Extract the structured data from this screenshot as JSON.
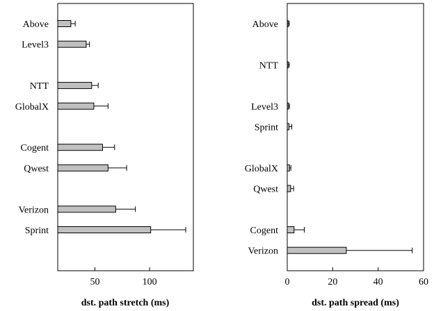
{
  "chart_data": [
    {
      "type": "bar",
      "orientation": "horizontal",
      "categories": [
        "Above",
        "Level3",
        "NTT",
        "GlobalX",
        "Cogent",
        "Qwest",
        "Verizon",
        "Sprint"
      ],
      "category_slots": [
        0,
        1,
        3,
        4,
        6,
        7,
        9,
        10
      ],
      "values": [
        28,
        42,
        47,
        49,
        57,
        62,
        69,
        101
      ],
      "error_upper": [
        32,
        45,
        53,
        62,
        68,
        79,
        87,
        133
      ],
      "title": "",
      "xlabel": "dst. path stretch (ms)",
      "ylabel": "",
      "xlim": [
        16,
        140
      ],
      "xticks": [
        50,
        100
      ],
      "grid": false
    },
    {
      "type": "bar",
      "orientation": "horizontal",
      "categories": [
        "Above",
        "NTT",
        "Level3",
        "Sprint",
        "GlobalX",
        "Qwest",
        "Cogent",
        "Verizon"
      ],
      "category_slots": [
        0,
        2,
        4,
        5,
        7,
        8,
        10,
        11
      ],
      "values": [
        0.4,
        0.4,
        0.5,
        0.8,
        1.0,
        1.5,
        3.0,
        26
      ],
      "error_upper": [
        0.9,
        0.9,
        1.0,
        2.0,
        1.6,
        2.8,
        7.5,
        55
      ],
      "title": "",
      "xlabel": "dst. path spread (ms)",
      "ylabel": "",
      "xlim": [
        0,
        60
      ],
      "xticks": [
        0,
        20,
        40,
        60
      ],
      "grid": false
    }
  ]
}
